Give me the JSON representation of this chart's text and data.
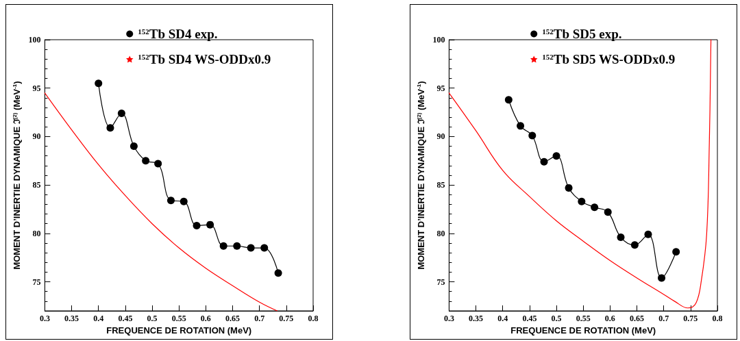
{
  "chart_data": [
    {
      "type": "line",
      "xlabel": "FREQUENCE DE ROTATION (MeV)",
      "ylabel": "MOMENT D’INERTIE DYNAMIQUE ℑ$^{(2)}$ (MeV$^{-1}$)",
      "xlim": [
        0.3,
        0.8
      ],
      "xticks": [
        0.3,
        0.35,
        0.4,
        0.45,
        0.5,
        0.55,
        0.6,
        0.65,
        0.7,
        0.75,
        0.8
      ],
      "ylim": [
        72,
        100
      ],
      "yticks": [
        75,
        80,
        85,
        90,
        95,
        100
      ],
      "grid": false,
      "legend": "top",
      "series": [
        {
          "name": "$^{152}$Tb SD4 exp.",
          "color": "#000000",
          "marker": "circle",
          "x": [
            0.4,
            0.422,
            0.443,
            0.466,
            0.488,
            0.511,
            0.535,
            0.559,
            0.583,
            0.608,
            0.633,
            0.658,
            0.684,
            0.709,
            0.735
          ],
          "values": [
            95.5,
            90.9,
            92.4,
            89.0,
            87.5,
            87.2,
            83.4,
            83.3,
            80.8,
            80.9,
            78.7,
            78.7,
            78.5,
            78.5,
            75.9
          ]
        },
        {
          "name": "$^{152}$Tb SD4 WS-ODDx0.9",
          "color": "#ff0000",
          "marker": "none",
          "x": [
            0.3,
            0.35,
            0.4,
            0.45,
            0.5,
            0.55,
            0.6,
            0.65,
            0.7,
            0.733
          ],
          "values": [
            94.5,
            90.7,
            87.1,
            83.9,
            81.0,
            78.5,
            76.4,
            74.6,
            72.9,
            72.0
          ]
        }
      ]
    },
    {
      "type": "line",
      "xlabel": "FREQUENCE DE ROTATION (MeV)",
      "ylabel": "MOMENT D’INERTIE DYNAMIQUE ℑ$^{(2)}$ (MeV$^{-1}$)",
      "xlim": [
        0.3,
        0.8
      ],
      "xticks": [
        0.3,
        0.35,
        0.4,
        0.45,
        0.5,
        0.55,
        0.6,
        0.65,
        0.7,
        0.75,
        0.8
      ],
      "ylim": [
        72,
        100
      ],
      "yticks": [
        75,
        80,
        85,
        90,
        95,
        100
      ],
      "grid": false,
      "legend": "top",
      "series": [
        {
          "name": "$^{152}$Tb SD5 exp.",
          "color": "#000000",
          "marker": "circle",
          "x": [
            0.411,
            0.433,
            0.455,
            0.477,
            0.5,
            0.523,
            0.547,
            0.571,
            0.596,
            0.62,
            0.646,
            0.671,
            0.696,
            0.723
          ],
          "values": [
            93.8,
            91.1,
            90.1,
            87.4,
            88.0,
            84.7,
            83.3,
            82.7,
            82.2,
            79.6,
            78.8,
            79.9,
            75.4,
            78.1
          ]
        },
        {
          "name": "$^{152}$Tb SD5 WS-ODDx0.9",
          "color": "#ff0000",
          "marker": "none",
          "x": [
            0.3,
            0.35,
            0.4,
            0.45,
            0.5,
            0.55,
            0.6,
            0.65,
            0.7,
            0.72,
            0.745,
            0.76,
            0.77,
            0.78,
            0.785,
            0.788
          ],
          "values": [
            94.5,
            90.6,
            86.5,
            83.8,
            81.3,
            79.2,
            77.2,
            75.4,
            73.7,
            73.0,
            72.3,
            72.8,
            75.1,
            79.9,
            89.4,
            100
          ]
        }
      ]
    }
  ]
}
